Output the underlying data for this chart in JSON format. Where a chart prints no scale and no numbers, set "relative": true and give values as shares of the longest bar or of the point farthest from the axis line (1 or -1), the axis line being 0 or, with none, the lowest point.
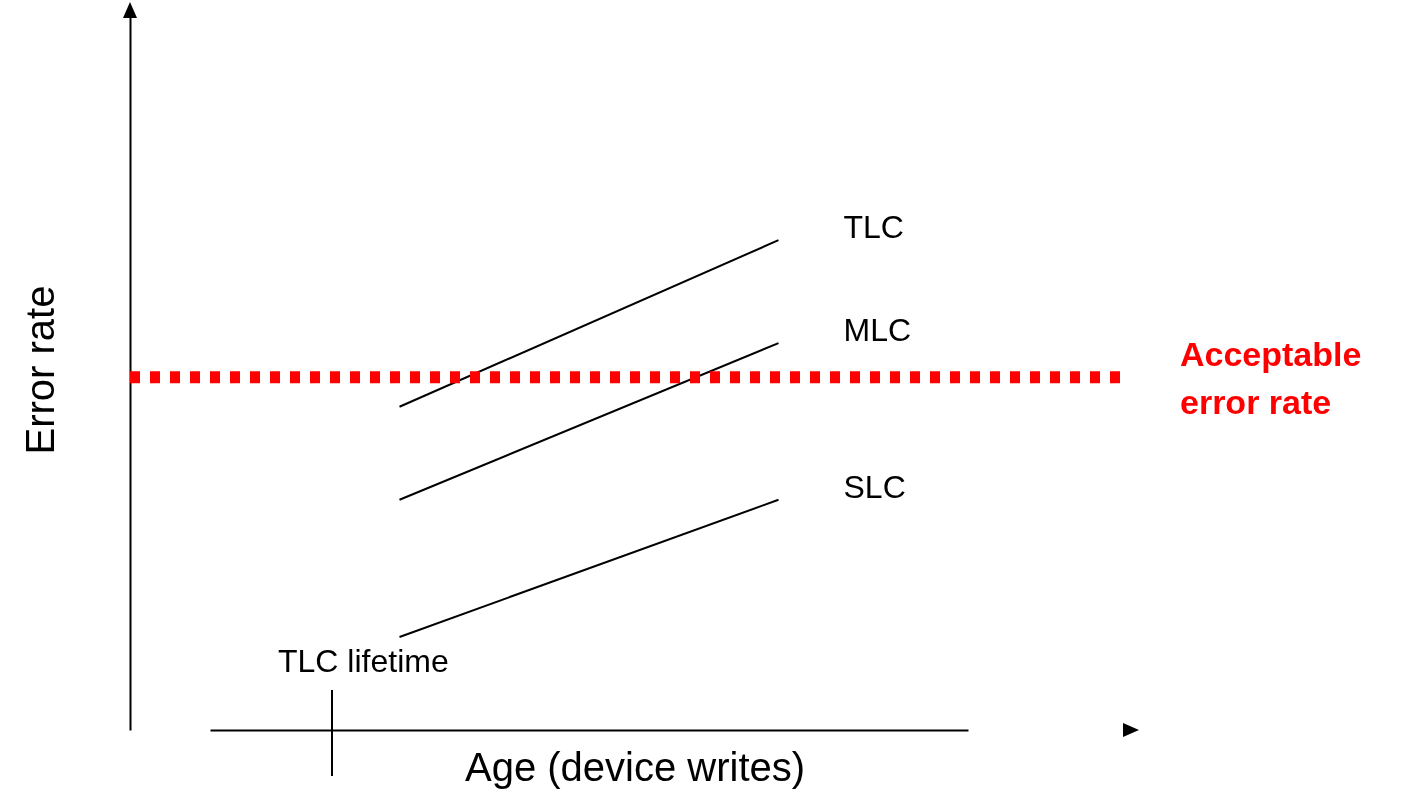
{
  "chart_data": {
    "type": "line",
    "relative": true,
    "xlabel": "Age (device writes)",
    "ylabel": "Error rate",
    "categories": [
      null,
      null
    ],
    "tick_labels": false,
    "series": [
      {
        "name": "TLC",
        "color": "#000000",
        "values": [
          0.66,
          1
        ]
      },
      {
        "name": "MLC",
        "color": "#000000",
        "values": [
          0.47,
          0.79
        ]
      },
      {
        "name": "SLC",
        "color": "#000000",
        "values": [
          0.19,
          0.47
        ]
      }
    ],
    "ref_lines": [
      {
        "axis": "y",
        "value": 0.72,
        "label": "Acceptable error rate",
        "color": "#ff0000",
        "line_style": "dotted"
      }
    ],
    "annotations": [
      "TLC lifetime"
    ]
  }
}
